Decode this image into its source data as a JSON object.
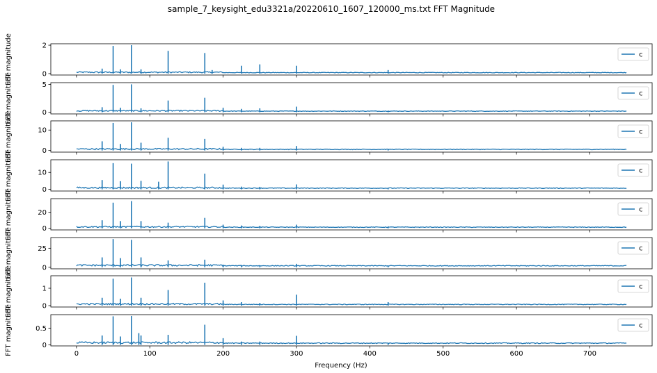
{
  "figure": {
    "title": "sample_7_keysight_edu3321a/20220610_1607_120000_ms.txt FFT Magnitude",
    "xlabel": "Frequency (Hz)",
    "ylabel": "FFT magnitude"
  },
  "colors": {
    "line": "#1f77b4",
    "axis": "#000000",
    "legend_border": "#cccccc"
  },
  "chart_data": [
    {
      "type": "line",
      "legend": "c",
      "legend_position": "upper right",
      "xlim": [
        -35,
        785
      ],
      "ylim": [
        -0.1,
        2.1
      ],
      "yticks": [
        0,
        2
      ],
      "xticks": [
        0,
        100,
        200,
        300,
        400,
        500,
        600,
        700
      ],
      "baseline": 0.05,
      "noise": 0.04,
      "peaks": [
        [
          50,
          1.95
        ],
        [
          75,
          2.0
        ],
        [
          125,
          1.6
        ],
        [
          175,
          1.45
        ],
        [
          225,
          0.55
        ],
        [
          250,
          0.65
        ],
        [
          300,
          0.55
        ],
        [
          425,
          0.25
        ],
        [
          35,
          0.35
        ],
        [
          60,
          0.3
        ],
        [
          88,
          0.3
        ],
        [
          185,
          0.25
        ]
      ]
    },
    {
      "type": "line",
      "legend": "c",
      "legend_position": "upper right",
      "xlim": [
        -35,
        785
      ],
      "ylim": [
        -0.3,
        5.3
      ],
      "yticks": [
        0,
        5
      ],
      "xticks": [
        0,
        100,
        200,
        300,
        400,
        500,
        600,
        700
      ],
      "baseline": 0.15,
      "noise": 0.1,
      "peaks": [
        [
          50,
          4.9
        ],
        [
          75,
          5.0
        ],
        [
          125,
          2.1
        ],
        [
          175,
          2.6
        ],
        [
          200,
          0.8
        ],
        [
          225,
          0.6
        ],
        [
          250,
          0.7
        ],
        [
          300,
          1.0
        ],
        [
          425,
          0.3
        ],
        [
          35,
          0.9
        ],
        [
          60,
          0.8
        ],
        [
          88,
          0.7
        ]
      ]
    },
    {
      "type": "line",
      "legend": "c",
      "legend_position": "upper right",
      "xlim": [
        -35,
        785
      ],
      "ylim": [
        -0.8,
        14.5
      ],
      "yticks": [
        0,
        10
      ],
      "xticks": [
        0,
        100,
        200,
        300,
        400,
        500,
        600,
        700
      ],
      "baseline": 0.4,
      "noise": 0.3,
      "peaks": [
        [
          50,
          13.5
        ],
        [
          75,
          13.8
        ],
        [
          125,
          6.2
        ],
        [
          175,
          5.7
        ],
        [
          200,
          1.8
        ],
        [
          225,
          1.3
        ],
        [
          250,
          1.3
        ],
        [
          300,
          2.2
        ],
        [
          425,
          0.6
        ],
        [
          35,
          4.5
        ],
        [
          60,
          3.2
        ],
        [
          88,
          3.8
        ]
      ]
    },
    {
      "type": "line",
      "legend": "c",
      "legend_position": "upper right",
      "xlim": [
        -35,
        785
      ],
      "ylim": [
        -1,
        17.5
      ],
      "yticks": [
        0,
        10
      ],
      "xticks": [
        0,
        100,
        200,
        300,
        400,
        500,
        600,
        700
      ],
      "baseline": 0.5,
      "noise": 0.4,
      "peaks": [
        [
          50,
          15.5
        ],
        [
          75,
          15.2
        ],
        [
          125,
          16.5
        ],
        [
          175,
          9.3
        ],
        [
          200,
          2.8
        ],
        [
          225,
          1.6
        ],
        [
          250,
          1.5
        ],
        [
          300,
          2.9
        ],
        [
          425,
          0.8
        ],
        [
          35,
          5.5
        ],
        [
          60,
          4.8
        ],
        [
          88,
          5.0
        ],
        [
          112,
          4.5
        ]
      ]
    },
    {
      "type": "line",
      "legend": "c",
      "legend_position": "upper right",
      "xlim": [
        -35,
        785
      ],
      "ylim": [
        -2,
        37
      ],
      "yticks": [
        0,
        20
      ],
      "xticks": [
        0,
        100,
        200,
        300,
        400,
        500,
        600,
        700
      ],
      "baseline": 1.0,
      "noise": 0.8,
      "peaks": [
        [
          50,
          32
        ],
        [
          75,
          34
        ],
        [
          125,
          7
        ],
        [
          175,
          13
        ],
        [
          200,
          4.5
        ],
        [
          225,
          3.5
        ],
        [
          250,
          3.0
        ],
        [
          300,
          4.5
        ],
        [
          425,
          2.5
        ],
        [
          35,
          10
        ],
        [
          60,
          9
        ],
        [
          88,
          9
        ]
      ]
    },
    {
      "type": "line",
      "legend": "c",
      "legend_position": "upper right",
      "xlim": [
        -2,
        39
      ],
      "ylim": [
        -2,
        39
      ],
      "yticks": [
        0,
        25
      ],
      "xticks": [
        0,
        100,
        200,
        300,
        400,
        500,
        600,
        700
      ],
      "baseline": 1.5,
      "noise": 1.0,
      "peaks": [
        [
          50,
          37
        ],
        [
          75,
          36
        ],
        [
          125,
          9
        ],
        [
          175,
          10
        ],
        [
          200,
          3.5
        ],
        [
          225,
          3.0
        ],
        [
          250,
          2.5
        ],
        [
          300,
          4.5
        ],
        [
          425,
          1.5
        ],
        [
          35,
          13
        ],
        [
          60,
          12
        ],
        [
          88,
          13
        ]
      ]
    },
    {
      "type": "line",
      "legend": "c",
      "legend_position": "upper right",
      "xlim": [
        -35,
        785
      ],
      "ylim": [
        -0.08,
        1.72
      ],
      "yticks": [
        0,
        1
      ],
      "xticks": [
        0,
        100,
        200,
        300,
        400,
        500,
        600,
        700
      ],
      "baseline": 0.05,
      "noise": 0.04,
      "peaks": [
        [
          50,
          1.55
        ],
        [
          75,
          1.62
        ],
        [
          125,
          0.9
        ],
        [
          175,
          1.32
        ],
        [
          200,
          0.3
        ],
        [
          225,
          0.2
        ],
        [
          250,
          0.15
        ],
        [
          300,
          0.63
        ],
        [
          425,
          0.2
        ],
        [
          35,
          0.45
        ],
        [
          60,
          0.4
        ],
        [
          88,
          0.45
        ]
      ]
    },
    {
      "type": "line",
      "legend": "c",
      "legend_position": "upper right",
      "xlim": [
        -35,
        785
      ],
      "ylim": [
        -0.03,
        0.9
      ],
      "yticks": [
        0,
        0.5
      ],
      "xticks": [
        0,
        100,
        200,
        300,
        400,
        500,
        600,
        700
      ],
      "baseline": 0.04,
      "noise": 0.025,
      "peaks": [
        [
          50,
          0.85
        ],
        [
          75,
          0.86
        ],
        [
          125,
          0.3
        ],
        [
          175,
          0.6
        ],
        [
          200,
          0.2
        ],
        [
          225,
          0.1
        ],
        [
          250,
          0.1
        ],
        [
          300,
          0.27
        ],
        [
          425,
          0.06
        ],
        [
          35,
          0.28
        ],
        [
          60,
          0.25
        ],
        [
          85,
          0.35
        ],
        [
          88,
          0.28
        ]
      ]
    }
  ]
}
